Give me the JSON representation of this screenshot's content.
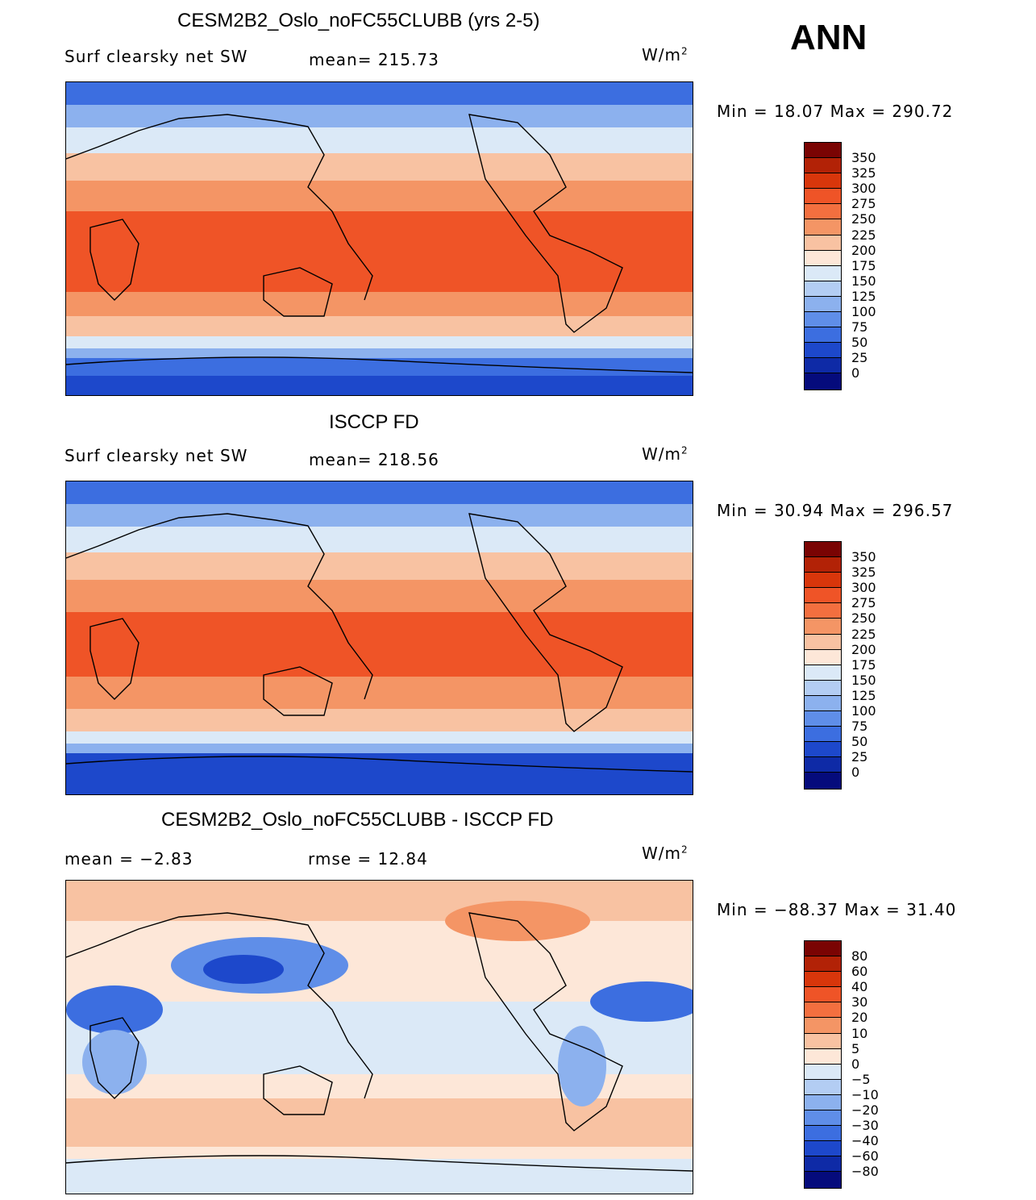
{
  "season": "ANN",
  "units_base": "W/m",
  "units_exp": "2",
  "panels": [
    {
      "title": "CESM2B2_Oslo_noFC55CLUBB (yrs 2-5)",
      "left_label": "Surf clearsky net SW",
      "center_label": "mean= 215.73",
      "minmax": "Min =   18.07 Max = 290.72",
      "legend_labels": [
        "350",
        "325",
        "300",
        "275",
        "250",
        "225",
        "200",
        "175",
        "150",
        "125",
        "100",
        "75",
        "50",
        "25",
        "0"
      ],
      "legend_colors": [
        "#7a0403",
        "#b22206",
        "#d8360b",
        "#ef5427",
        "#f36f3f",
        "#f49565",
        "#f8c2a2",
        "#fde7d8",
        "#dbe9f7",
        "#b3cdf3",
        "#8cb1ee",
        "#5f8ee8",
        "#3c6ee0",
        "#1d48cb",
        "#0e2aa6",
        "#050b7c"
      ]
    },
    {
      "title": "ISCCP FD",
      "left_label": "Surf clearsky net SW",
      "center_label": "mean= 218.56",
      "minmax": "Min =   30.94 Max = 296.57",
      "legend_labels": [
        "350",
        "325",
        "300",
        "275",
        "250",
        "225",
        "200",
        "175",
        "150",
        "125",
        "100",
        "75",
        "50",
        "25",
        "0"
      ],
      "legend_colors": [
        "#7a0403",
        "#b22206",
        "#d8360b",
        "#ef5427",
        "#f36f3f",
        "#f49565",
        "#f8c2a2",
        "#fde7d8",
        "#dbe9f7",
        "#b3cdf3",
        "#8cb1ee",
        "#5f8ee8",
        "#3c6ee0",
        "#1d48cb",
        "#0e2aa6",
        "#050b7c"
      ]
    },
    {
      "title": "CESM2B2_Oslo_noFC55CLUBB - ISCCP FD",
      "left_label": "mean =   −2.83",
      "center_label": "rmse =   12.84",
      "minmax": "Min = −88.37 Max =   31.40",
      "legend_labels": [
        "80",
        "60",
        "40",
        "30",
        "20",
        "10",
        "5",
        "0",
        "−5",
        "−10",
        "−20",
        "−30",
        "−40",
        "−60",
        "−80"
      ],
      "legend_colors": [
        "#7a0403",
        "#b22206",
        "#d8360b",
        "#ef5427",
        "#f36f3f",
        "#f49565",
        "#f8c2a2",
        "#fde7d8",
        "#dbe9f7",
        "#b3cdf3",
        "#8cb1ee",
        "#5f8ee8",
        "#3c6ee0",
        "#1d48cb",
        "#0e2aa6",
        "#050b7c"
      ]
    }
  ]
}
